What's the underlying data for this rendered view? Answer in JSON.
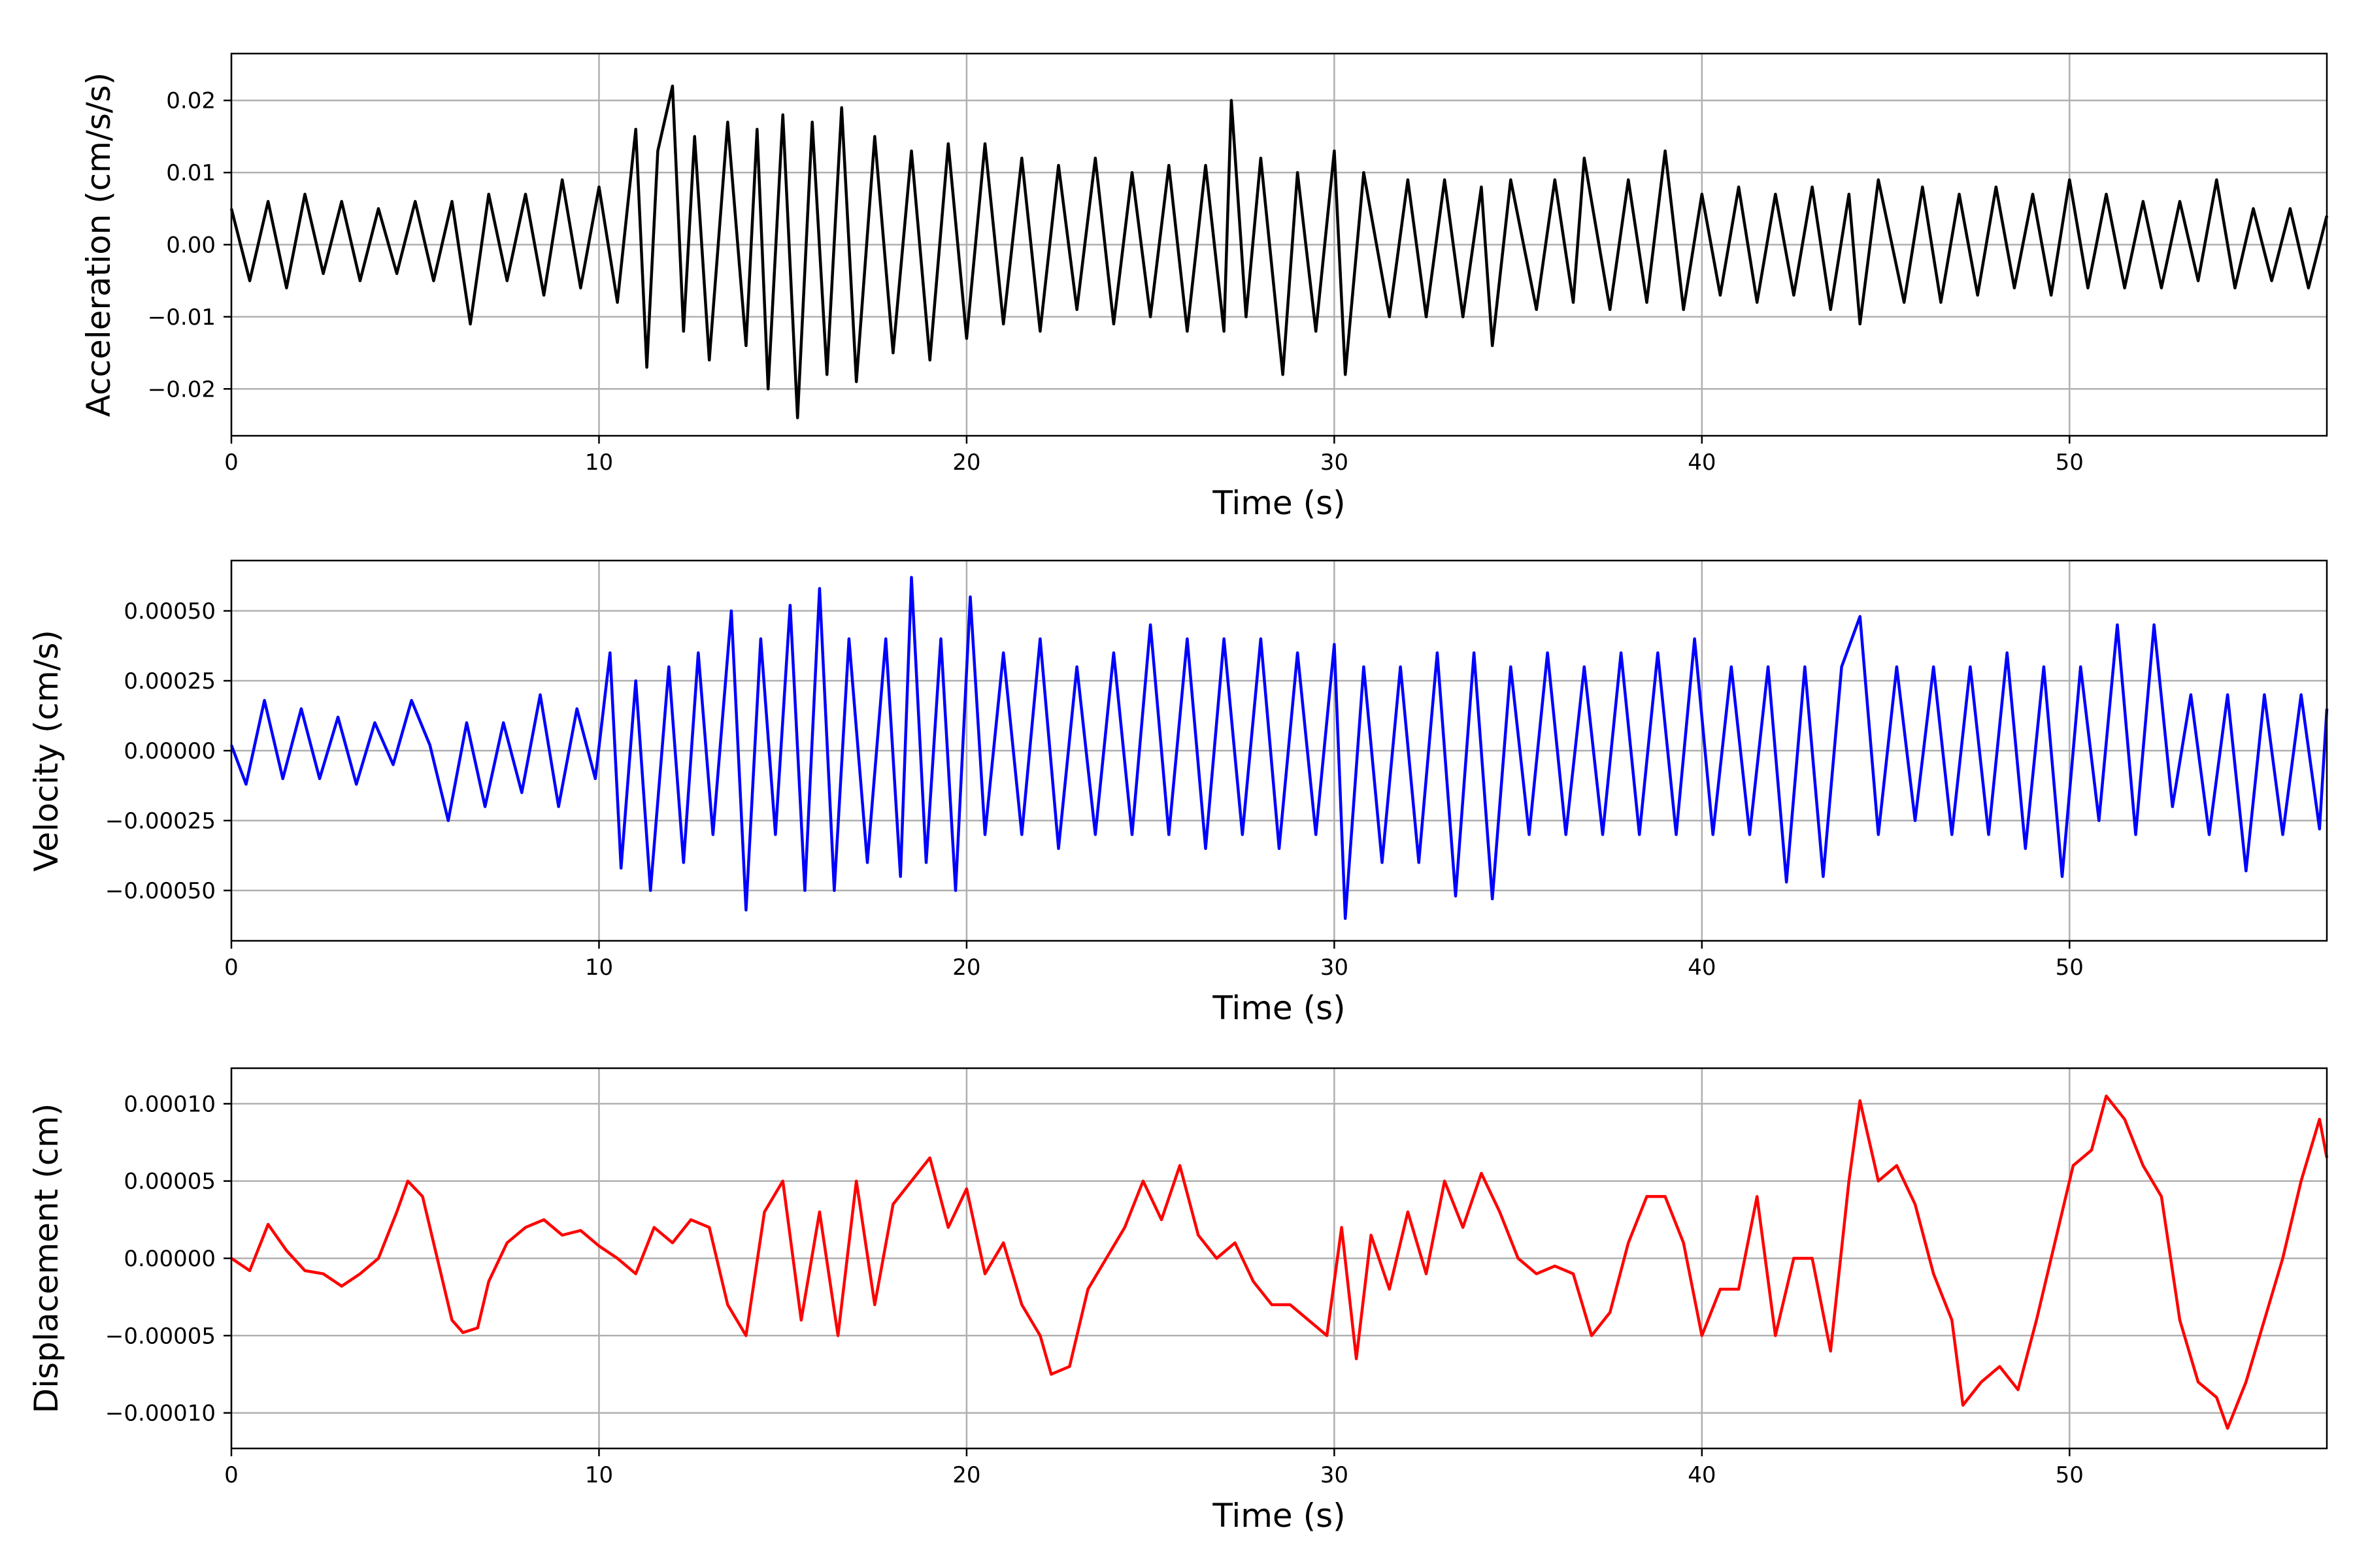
{
  "chart_data": [
    {
      "type": "line",
      "xlabel": "Time (s)",
      "ylabel": "Acceleration (cm/s/s)",
      "xlim": [
        0,
        57
      ],
      "ylim": [
        -0.0265,
        0.0265
      ],
      "xticks": [
        0,
        10,
        20,
        30,
        40,
        50
      ],
      "xtick_labels": [
        "0",
        "10",
        "20",
        "30",
        "40",
        "50"
      ],
      "yticks": [
        -0.02,
        -0.01,
        0.0,
        0.01,
        0.02
      ],
      "ytick_labels": [
        "−0.02",
        "−0.01",
        "0.00",
        "0.01",
        "0.02"
      ],
      "grid": true,
      "series": [
        {
          "color": "#000000",
          "x": [
            0,
            0.5,
            1.0,
            1.5,
            2.0,
            2.5,
            3.0,
            3.5,
            4.0,
            4.5,
            5.0,
            5.5,
            6.0,
            6.5,
            7.0,
            7.5,
            8.0,
            8.5,
            9.0,
            9.5,
            10.0,
            10.5,
            11.0,
            11.3,
            11.6,
            12.0,
            12.3,
            12.6,
            13.0,
            13.5,
            14.0,
            14.3,
            14.6,
            15.0,
            15.4,
            15.8,
            16.2,
            16.6,
            17.0,
            17.5,
            18.0,
            18.5,
            19.0,
            19.5,
            20.0,
            20.5,
            21.0,
            21.5,
            22.0,
            22.5,
            23.0,
            23.5,
            24.0,
            24.5,
            25.0,
            25.5,
            26.0,
            26.5,
            27.0,
            27.2,
            27.6,
            28.0,
            28.6,
            29.0,
            29.5,
            30.0,
            30.3,
            30.8,
            31.5,
            32.0,
            32.5,
            33.0,
            33.5,
            34.0,
            34.3,
            34.8,
            35.5,
            36.0,
            36.5,
            36.8,
            37.5,
            38.0,
            38.5,
            39.0,
            39.5,
            40.0,
            40.5,
            41.0,
            41.5,
            42.0,
            42.5,
            43.0,
            43.5,
            44.0,
            44.3,
            44.8,
            45.5,
            46.0,
            46.5,
            47.0,
            47.5,
            48.0,
            48.5,
            49.0,
            49.5,
            50.0,
            50.5,
            51.0,
            51.5,
            52.0,
            52.5,
            53.0,
            53.5,
            54.0,
            54.5,
            55.0,
            55.5,
            56.0,
            56.5,
            57.0
          ],
          "y": [
            0.005,
            -0.005,
            0.006,
            -0.006,
            0.007,
            -0.004,
            0.006,
            -0.005,
            0.005,
            -0.004,
            0.006,
            -0.005,
            0.006,
            -0.011,
            0.007,
            -0.005,
            0.007,
            -0.007,
            0.009,
            -0.006,
            0.008,
            -0.008,
            0.016,
            -0.017,
            0.013,
            0.022,
            -0.012,
            0.015,
            -0.016,
            0.017,
            -0.014,
            0.016,
            -0.02,
            0.018,
            -0.024,
            0.017,
            -0.018,
            0.019,
            -0.019,
            0.015,
            -0.015,
            0.013,
            -0.016,
            0.014,
            -0.013,
            0.014,
            -0.011,
            0.012,
            -0.012,
            0.011,
            -0.009,
            0.012,
            -0.011,
            0.01,
            -0.01,
            0.011,
            -0.012,
            0.011,
            -0.012,
            0.02,
            -0.01,
            0.012,
            -0.018,
            0.01,
            -0.012,
            0.013,
            -0.018,
            0.01,
            -0.01,
            0.009,
            -0.01,
            0.009,
            -0.01,
            0.008,
            -0.014,
            0.009,
            -0.009,
            0.009,
            -0.008,
            0.012,
            -0.009,
            0.009,
            -0.008,
            0.013,
            -0.009,
            0.007,
            -0.007,
            0.008,
            -0.008,
            0.007,
            -0.007,
            0.008,
            -0.009,
            0.007,
            -0.011,
            0.009,
            -0.008,
            0.008,
            -0.008,
            0.007,
            -0.007,
            0.008,
            -0.006,
            0.007,
            -0.007,
            0.009,
            -0.006,
            0.007,
            -0.006,
            0.006,
            -0.006,
            0.006,
            -0.005,
            0.009,
            -0.006,
            0.005,
            -0.005,
            0.005,
            -0.006,
            0.004
          ]
        }
      ]
    },
    {
      "type": "line",
      "xlabel": "Time (s)",
      "ylabel": "Velocity (cm/s)",
      "xlim": [
        0,
        57
      ],
      "ylim": [
        -0.00068,
        0.00068
      ],
      "xticks": [
        0,
        10,
        20,
        30,
        40,
        50
      ],
      "xtick_labels": [
        "0",
        "10",
        "20",
        "30",
        "40",
        "50"
      ],
      "yticks": [
        -0.0005,
        -0.00025,
        0.0,
        0.00025,
        0.0005
      ],
      "ytick_labels": [
        "−0.00050",
        "−0.00025",
        "0.00000",
        "0.00025",
        "0.00050"
      ],
      "grid": true,
      "series": [
        {
          "color": "#0000ff",
          "x": [
            0,
            0.4,
            0.9,
            1.4,
            1.9,
            2.4,
            2.9,
            3.4,
            3.9,
            4.4,
            4.9,
            5.4,
            5.9,
            6.4,
            6.9,
            7.4,
            7.9,
            8.4,
            8.9,
            9.4,
            9.9,
            10.3,
            10.6,
            11.0,
            11.4,
            11.9,
            12.3,
            12.7,
            13.1,
            13.6,
            14.0,
            14.4,
            14.8,
            15.2,
            15.6,
            16.0,
            16.4,
            16.8,
            17.3,
            17.8,
            18.2,
            18.5,
            18.9,
            19.3,
            19.7,
            20.1,
            20.5,
            21.0,
            21.5,
            22.0,
            22.5,
            23.0,
            23.5,
            24.0,
            24.5,
            25.0,
            25.5,
            26.0,
            26.5,
            27.0,
            27.5,
            28.0,
            28.5,
            29.0,
            29.5,
            30.0,
            30.3,
            30.8,
            31.3,
            31.8,
            32.3,
            32.8,
            33.3,
            33.8,
            34.3,
            34.8,
            35.3,
            35.8,
            36.3,
            36.8,
            37.3,
            37.8,
            38.3,
            38.8,
            39.3,
            39.8,
            40.3,
            40.8,
            41.3,
            41.8,
            42.3,
            42.8,
            43.3,
            43.8,
            44.3,
            44.8,
            45.3,
            45.8,
            46.3,
            46.8,
            47.3,
            47.8,
            48.3,
            48.8,
            49.3,
            49.8,
            50.3,
            50.8,
            51.3,
            51.8,
            52.3,
            52.8,
            53.3,
            53.8,
            54.3,
            54.8,
            55.3,
            55.8,
            56.3,
            56.8,
            57.0
          ],
          "y": [
            2e-05,
            -0.00012,
            0.00018,
            -0.0001,
            0.00015,
            -0.0001,
            0.00012,
            -0.00012,
            0.0001,
            -5e-05,
            0.00018,
            2e-05,
            -0.00025,
            0.0001,
            -0.0002,
            0.0001,
            -0.00015,
            0.0002,
            -0.0002,
            0.00015,
            -0.0001,
            0.00035,
            -0.00042,
            0.00025,
            -0.0005,
            0.0003,
            -0.0004,
            0.00035,
            -0.0003,
            0.0005,
            -0.00057,
            0.0004,
            -0.0003,
            0.00052,
            -0.0005,
            0.00058,
            -0.0005,
            0.0004,
            -0.0004,
            0.0004,
            -0.00045,
            0.00062,
            -0.0004,
            0.0004,
            -0.0005,
            0.00055,
            -0.0003,
            0.00035,
            -0.0003,
            0.0004,
            -0.00035,
            0.0003,
            -0.0003,
            0.00035,
            -0.0003,
            0.00045,
            -0.0003,
            0.0004,
            -0.00035,
            0.0004,
            -0.0003,
            0.0004,
            -0.00035,
            0.00035,
            -0.0003,
            0.00038,
            -0.0006,
            0.0003,
            -0.0004,
            0.0003,
            -0.0004,
            0.00035,
            -0.00052,
            0.00035,
            -0.00053,
            0.0003,
            -0.0003,
            0.00035,
            -0.0003,
            0.0003,
            -0.0003,
            0.00035,
            -0.0003,
            0.00035,
            -0.0003,
            0.0004,
            -0.0003,
            0.0003,
            -0.0003,
            0.0003,
            -0.00047,
            0.0003,
            -0.00045,
            0.0003,
            0.00048,
            -0.0003,
            0.0003,
            -0.00025,
            0.0003,
            -0.0003,
            0.0003,
            -0.0003,
            0.00035,
            -0.00035,
            0.0003,
            -0.00045,
            0.0003,
            -0.00025,
            0.00045,
            -0.0003,
            0.00045,
            -0.0002,
            0.0002,
            -0.0003,
            0.0002,
            -0.00043,
            0.0002,
            -0.0003,
            0.0002,
            -0.00028,
            0.00015
          ]
        }
      ]
    },
    {
      "type": "line",
      "xlabel": "Time (s)",
      "ylabel": "Displacement (cm)",
      "xlim": [
        0,
        57
      ],
      "ylim": [
        -0.000123,
        0.000123
      ],
      "xticks": [
        0,
        10,
        20,
        30,
        40,
        50
      ],
      "xtick_labels": [
        "0",
        "10",
        "20",
        "30",
        "40",
        "50"
      ],
      "yticks": [
        -0.0001,
        -5e-05,
        0.0,
        5e-05,
        0.0001
      ],
      "ytick_labels": [
        "−0.00010",
        "−0.00005",
        "0.00000",
        "0.00005",
        "0.00010"
      ],
      "grid": true,
      "series": [
        {
          "color": "#ff0000",
          "x": [
            0,
            0.5,
            1.0,
            1.5,
            2.0,
            2.5,
            3.0,
            3.5,
            4.0,
            4.5,
            4.8,
            5.2,
            5.6,
            6.0,
            6.3,
            6.7,
            7.0,
            7.5,
            8.0,
            8.5,
            9.0,
            9.5,
            10.0,
            10.5,
            11.0,
            11.5,
            12.0,
            12.5,
            13.0,
            13.5,
            14.0,
            14.5,
            15.0,
            15.5,
            16.0,
            16.5,
            17.0,
            17.5,
            18.0,
            18.5,
            19.0,
            19.5,
            20.0,
            20.5,
            21.0,
            21.5,
            22.0,
            22.3,
            22.8,
            23.3,
            23.8,
            24.3,
            24.8,
            25.3,
            25.8,
            26.3,
            26.8,
            27.3,
            27.8,
            28.3,
            28.8,
            29.3,
            29.8,
            30.2,
            30.6,
            31.0,
            31.5,
            32.0,
            32.5,
            33.0,
            33.5,
            34.0,
            34.5,
            35.0,
            35.5,
            36.0,
            36.5,
            37.0,
            37.5,
            38.0,
            38.5,
            39.0,
            39.5,
            40.0,
            40.5,
            41.0,
            41.5,
            42.0,
            42.5,
            43.0,
            43.5,
            44.0,
            44.3,
            44.8,
            45.3,
            45.8,
            46.3,
            46.8,
            47.1,
            47.6,
            48.1,
            48.6,
            49.1,
            49.6,
            50.1,
            50.6,
            51.0,
            51.5,
            52.0,
            52.5,
            53.0,
            53.5,
            54.0,
            54.3,
            54.8,
            55.3,
            55.8,
            56.3,
            56.8,
            57.0
          ],
          "y": [
            0.0,
            -8e-06,
            2.2e-05,
            5e-06,
            -8e-06,
            -1e-05,
            -1.8e-05,
            -1e-05,
            0.0,
            3e-05,
            5e-05,
            4e-05,
            0.0,
            -4e-05,
            -4.8e-05,
            -4.5e-05,
            -1.5e-05,
            1e-05,
            2e-05,
            2.5e-05,
            1.5e-05,
            1.8e-05,
            8e-06,
            0.0,
            -1e-05,
            2e-05,
            1e-05,
            2.5e-05,
            2e-05,
            -3e-05,
            -5e-05,
            3e-05,
            5e-05,
            -4e-05,
            3e-05,
            -5e-05,
            5e-05,
            -3e-05,
            3.5e-05,
            5e-05,
            6.5e-05,
            2e-05,
            4.5e-05,
            -1e-05,
            1e-05,
            -3e-05,
            -5e-05,
            -7.5e-05,
            -7e-05,
            -2e-05,
            0.0,
            2e-05,
            5e-05,
            2.5e-05,
            6e-05,
            1.5e-05,
            0.0,
            1e-05,
            -1.5e-05,
            -3e-05,
            -3e-05,
            -4e-05,
            -5e-05,
            2e-05,
            -6.5e-05,
            1.5e-05,
            -2e-05,
            3e-05,
            -1e-05,
            5e-05,
            2e-05,
            5.5e-05,
            3e-05,
            0.0,
            -1e-05,
            -5e-06,
            -1e-05,
            -5e-05,
            -3.5e-05,
            1e-05,
            4e-05,
            4e-05,
            1e-05,
            -5e-05,
            -2e-05,
            -2e-05,
            4e-05,
            -5e-05,
            0.0,
            0.0,
            -6e-05,
            5e-05,
            0.000102,
            5e-05,
            6e-05,
            3.5e-05,
            -1e-05,
            -4e-05,
            -9.5e-05,
            -8e-05,
            -7e-05,
            -8.5e-05,
            -4e-05,
            1e-05,
            6e-05,
            7e-05,
            0.000105,
            9e-05,
            6e-05,
            4e-05,
            -4e-05,
            -8e-05,
            -9e-05,
            -0.00011,
            -8e-05,
            -4e-05,
            0.0,
            5e-05,
            9e-05,
            6.5e-05
          ]
        }
      ]
    }
  ]
}
